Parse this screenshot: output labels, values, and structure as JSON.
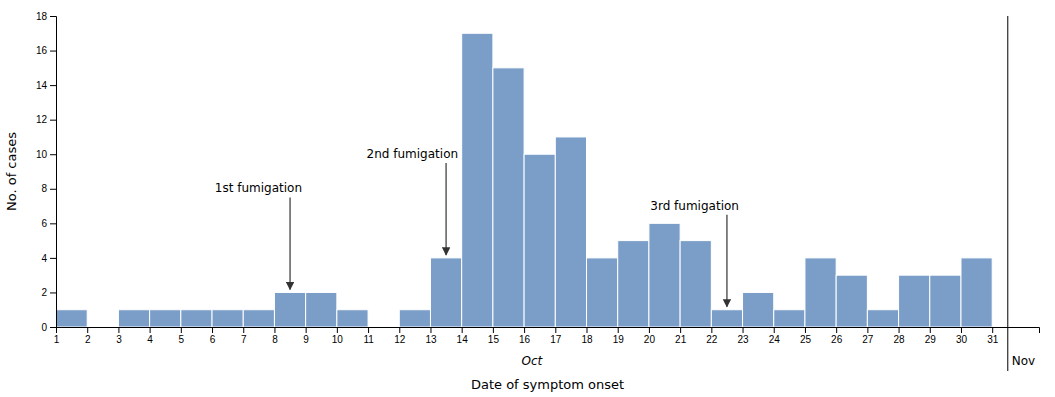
{
  "chart_data": {
    "type": "histogram",
    "bins": [
      1,
      2,
      3,
      4,
      5,
      6,
      7,
      8,
      9,
      10,
      11,
      12,
      13,
      14,
      15,
      16,
      17,
      18,
      19,
      20,
      21,
      22,
      23,
      24,
      25,
      26,
      27,
      28,
      29,
      30,
      31
    ],
    "values": [
      1,
      0,
      1,
      1,
      1,
      1,
      1,
      2,
      2,
      1,
      0,
      1,
      4,
      17,
      15,
      10,
      11,
      4,
      5,
      6,
      5,
      1,
      2,
      1,
      4,
      3,
      1,
      3,
      3,
      4
    ],
    "color": "#7B9EC8",
    "xlabel": "Date of symptom onset",
    "ylabel": "No. of cases",
    "xlim": [
      1,
      32.5
    ],
    "xticks": [
      1,
      2,
      3,
      4,
      5,
      6,
      7,
      8,
      9,
      10,
      11,
      12,
      13,
      14,
      15,
      16,
      17,
      18,
      19,
      20,
      21,
      22,
      23,
      24,
      25,
      26,
      27,
      28,
      29,
      30,
      31
    ],
    "ylim": [
      0,
      18
    ],
    "yticks": [
      0,
      2,
      4,
      6,
      8,
      10,
      12,
      14,
      16,
      18
    ],
    "grid": false,
    "month_labels": [
      "Oct",
      "Nov"
    ],
    "month_separator": 31.5,
    "annotations": [
      {
        "text": "1st fumigation",
        "x": 8.5,
        "y": 2
      },
      {
        "text": "2nd fumigation",
        "x": 13.5,
        "y": 4
      },
      {
        "text": "3rd fumigation",
        "x": 22.5,
        "y": 1
      }
    ]
  }
}
